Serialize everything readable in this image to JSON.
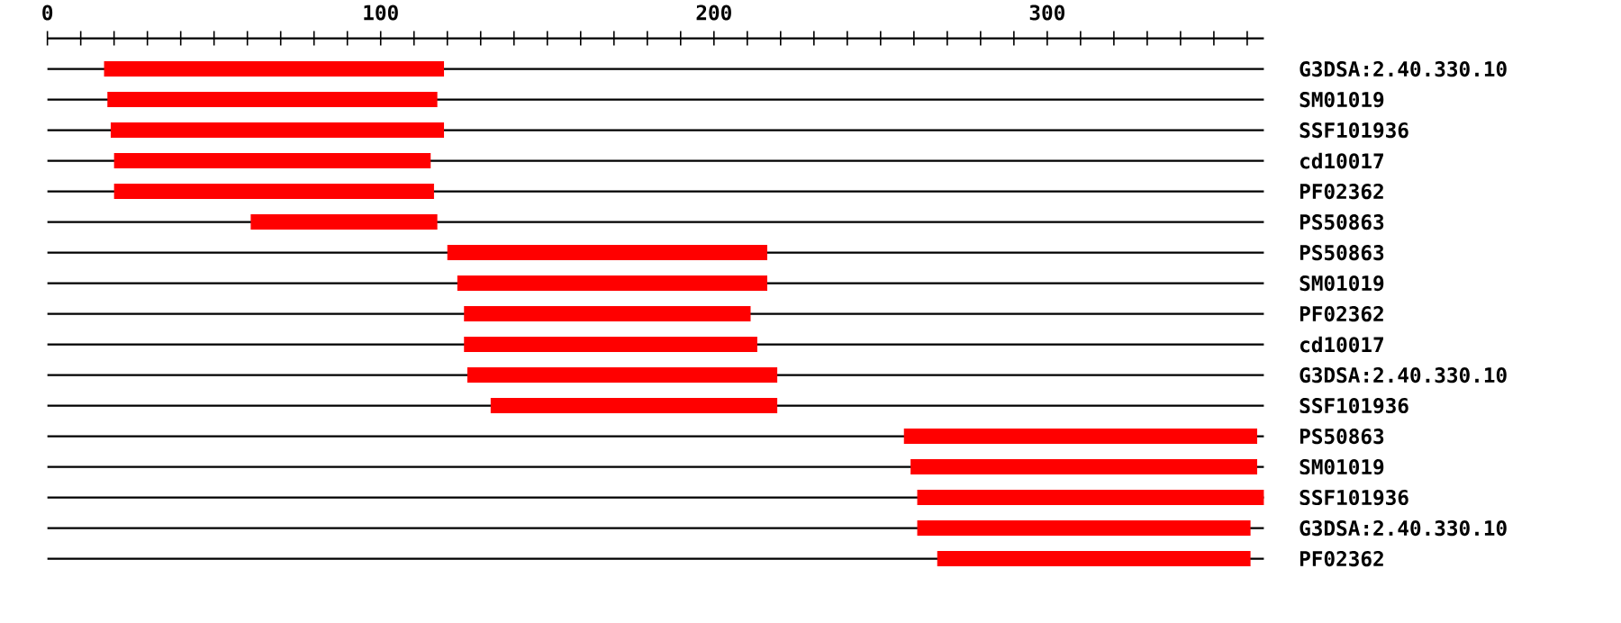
{
  "chart_data": {
    "type": "bar",
    "orientation": "horizontal",
    "color": "#ff0000",
    "grid": "y",
    "categories": [
      "G3DSA:2.40.330.10",
      "SM01019",
      "SSF101936",
      "cd10017",
      "PF02362",
      "PS50863",
      "PS50863",
      "SM01019",
      "PF02362",
      "cd10017",
      "G3DSA:2.40.330.10",
      "SSF101936",
      "PS50863",
      "SM01019",
      "SSF101936",
      "G3DSA:2.40.330.10",
      "PF02362"
    ],
    "base": [
      17,
      18,
      19,
      20,
      20,
      61,
      120,
      123,
      125,
      125,
      126,
      133,
      257,
      259,
      261,
      261,
      267
    ],
    "values": [
      102,
      99,
      100,
      95,
      96,
      56,
      96,
      93,
      86,
      88,
      93,
      86,
      106,
      104,
      104,
      100,
      94
    ],
    "xlim": [
      0,
      365
    ],
    "xticks": [
      0,
      {
        "value": 10,
        "label": null
      },
      {
        "value": 20,
        "label": null
      },
      {
        "value": 30,
        "label": null
      },
      {
        "value": 40,
        "label": null
      },
      {
        "value": 50,
        "label": null
      },
      {
        "value": 60,
        "label": null
      },
      {
        "value": 70,
        "label": null
      },
      {
        "value": 80,
        "label": null
      },
      {
        "value": 90,
        "label": null
      },
      100,
      {
        "value": 110,
        "label": null
      },
      {
        "value": 120,
        "label": null
      },
      {
        "value": 130,
        "label": null
      },
      {
        "value": 140,
        "label": null
      },
      {
        "value": 150,
        "label": null
      },
      {
        "value": 160,
        "label": null
      },
      {
        "value": 170,
        "label": null
      },
      {
        "value": 180,
        "label": null
      },
      {
        "value": 190,
        "label": null
      },
      200,
      {
        "value": 210,
        "label": null
      },
      {
        "value": 220,
        "label": null
      },
      {
        "value": 230,
        "label": null
      },
      {
        "value": 240,
        "label": null
      },
      {
        "value": 250,
        "label": null
      },
      {
        "value": 260,
        "label": null
      },
      {
        "value": 270,
        "label": null
      },
      {
        "value": 280,
        "label": null
      },
      {
        "value": 290,
        "label": null
      },
      300,
      {
        "value": 310,
        "label": null
      },
      {
        "value": 320,
        "label": null
      },
      {
        "value": 330,
        "label": null
      },
      {
        "value": 340,
        "label": null
      },
      {
        "value": 350,
        "label": null
      },
      {
        "value": 360,
        "label": null
      }
    ]
  }
}
